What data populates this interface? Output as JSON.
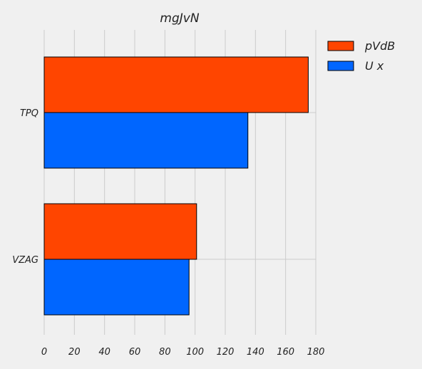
{
  "chart_data": {
    "type": "bar",
    "orientation": "horizontal",
    "title": "mgJvN",
    "xlabel": "",
    "ylabel": "",
    "categories": [
      "TPQ",
      "VZAG"
    ],
    "series": [
      {
        "name": "pVdB",
        "values": [
          175,
          101
        ],
        "color": "#ff4500"
      },
      {
        "name": "U x",
        "values": [
          135,
          96
        ],
        "color": "#0066ff"
      }
    ],
    "xlim": [
      0,
      180
    ],
    "xticks": [
      0,
      20,
      40,
      60,
      80,
      100,
      120,
      140,
      160,
      180
    ],
    "grid": true,
    "legend": "top-right"
  }
}
